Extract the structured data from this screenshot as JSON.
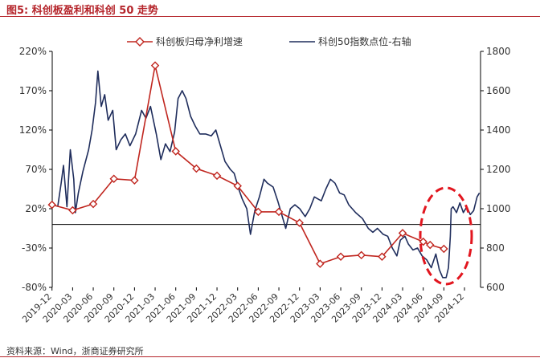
{
  "header": {
    "title": "图5:  科创板盈利和科创 50 走势"
  },
  "footer": {
    "source": "资料来源：Wind，浙商证券研究所"
  },
  "chart_data": {
    "type": "line",
    "title": "",
    "x_ticks": [
      "2019-12",
      "2020-03",
      "2020-06",
      "2020-09",
      "2020-12",
      "2021-03",
      "2021-06",
      "2021-09",
      "2021-12",
      "2022-03",
      "2022-06",
      "2022-09",
      "2022-12",
      "2023-03",
      "2023-06",
      "2023-09",
      "2023-12",
      "2024-03",
      "2024-06",
      "2024-09",
      "2024-12"
    ],
    "y_left": {
      "min": -80,
      "max": 220,
      "ticks": [
        "220%",
        "170%",
        "120%",
        "70%",
        "20%",
        "-30%",
        "-80%"
      ],
      "tick_values": [
        220,
        170,
        120,
        70,
        20,
        -30,
        -80
      ]
    },
    "y_right": {
      "min": 600,
      "max": 1800,
      "ticks": [
        "1800",
        "1600",
        "1400",
        "1200",
        "1000",
        "800",
        "600"
      ],
      "tick_values": [
        1800,
        1600,
        1400,
        1200,
        1000,
        800,
        600
      ]
    },
    "zero_line": 0,
    "legend_position": "top",
    "series": [
      {
        "name": "科创板归母净利增速",
        "axis": "left",
        "color": "#c0261f",
        "marker": "diamond",
        "points": [
          [
            "2019-12",
            25
          ],
          [
            "2020-03",
            18
          ],
          [
            "2020-06",
            26
          ],
          [
            "2020-09",
            58
          ],
          [
            "2020-12",
            56
          ],
          [
            "2021-03",
            202
          ],
          [
            "2021-06",
            93
          ],
          [
            "2021-09",
            71
          ],
          [
            "2021-12",
            62
          ],
          [
            "2022-03",
            49
          ],
          [
            "2022-06",
            16
          ],
          [
            "2022-09",
            16
          ],
          [
            "2022-12",
            2
          ],
          [
            "2023-03",
            -50
          ],
          [
            "2023-06",
            -41
          ],
          [
            "2023-09",
            -39
          ],
          [
            "2023-12",
            -41
          ],
          [
            "2024-03",
            -11
          ],
          [
            "2024-06",
            -22
          ],
          [
            "2024-07",
            -26
          ],
          [
            "2024-09",
            -31
          ]
        ]
      },
      {
        "name": "科创50指数点位-右轴",
        "axis": "right",
        "color": "#1f2d5c",
        "points": [
          [
            "2019-12-25",
            1010
          ],
          [
            "2020-01-10",
            1130
          ],
          [
            "2020-01-20",
            1220
          ],
          [
            "2020-02-05",
            1010
          ],
          [
            "2020-02-20",
            1300
          ],
          [
            "2020-03-05",
            1150
          ],
          [
            "2020-03-12",
            980
          ],
          [
            "2020-03-25",
            1080
          ],
          [
            "2020-04-15",
            1190
          ],
          [
            "2020-05-10",
            1300
          ],
          [
            "2020-05-25",
            1400
          ],
          [
            "2020-06-10",
            1540
          ],
          [
            "2020-06-20",
            1700
          ],
          [
            "2020-07-05",
            1520
          ],
          [
            "2020-07-20",
            1580
          ],
          [
            "2020-08-05",
            1450
          ],
          [
            "2020-08-25",
            1500
          ],
          [
            "2020-09-10",
            1300
          ],
          [
            "2020-09-30",
            1350
          ],
          [
            "2020-10-20",
            1380
          ],
          [
            "2020-11-10",
            1320
          ],
          [
            "2020-12-05",
            1380
          ],
          [
            "2020-12-31",
            1500
          ],
          [
            "2021-01-20",
            1460
          ],
          [
            "2021-02-10",
            1520
          ],
          [
            "2021-03-05",
            1380
          ],
          [
            "2021-03-25",
            1250
          ],
          [
            "2021-04-15",
            1330
          ],
          [
            "2021-05-05",
            1290
          ],
          [
            "2021-05-25",
            1390
          ],
          [
            "2021-06-10",
            1560
          ],
          [
            "2021-06-28",
            1600
          ],
          [
            "2021-07-15",
            1560
          ],
          [
            "2021-08-05",
            1470
          ],
          [
            "2021-08-25",
            1420
          ],
          [
            "2021-09-15",
            1380
          ],
          [
            "2021-10-10",
            1380
          ],
          [
            "2021-11-05",
            1370
          ],
          [
            "2021-11-25",
            1400
          ],
          [
            "2021-12-15",
            1320
          ],
          [
            "2022-01-05",
            1240
          ],
          [
            "2022-01-28",
            1200
          ],
          [
            "2022-02-15",
            1180
          ],
          [
            "2022-03-05",
            1100
          ],
          [
            "2022-03-20",
            1050
          ],
          [
            "2022-04-10",
            1000
          ],
          [
            "2022-04-26",
            870
          ],
          [
            "2022-05-15",
            990
          ],
          [
            "2022-06-05",
            1060
          ],
          [
            "2022-06-25",
            1150
          ],
          [
            "2022-07-10",
            1130
          ],
          [
            "2022-08-05",
            1110
          ],
          [
            "2022-08-25",
            1040
          ],
          [
            "2022-09-15",
            960
          ],
          [
            "2022-09-30",
            900
          ],
          [
            "2022-10-20",
            1000
          ],
          [
            "2022-11-10",
            1020
          ],
          [
            "2022-12-01",
            1000
          ],
          [
            "2022-12-25",
            960
          ],
          [
            "2023-01-15",
            1000
          ],
          [
            "2023-02-05",
            1060
          ],
          [
            "2023-03-05",
            1040
          ],
          [
            "2023-03-25",
            1100
          ],
          [
            "2023-04-15",
            1150
          ],
          [
            "2023-05-05",
            1130
          ],
          [
            "2023-05-25",
            1080
          ],
          [
            "2023-06-15",
            1070
          ],
          [
            "2023-07-05",
            1020
          ],
          [
            "2023-08-05",
            980
          ],
          [
            "2023-09-05",
            950
          ],
          [
            "2023-09-30",
            900
          ],
          [
            "2023-10-20",
            880
          ],
          [
            "2023-11-10",
            900
          ],
          [
            "2023-12-05",
            870
          ],
          [
            "2023-12-25",
            860
          ],
          [
            "2024-01-15",
            800
          ],
          [
            "2024-02-05",
            760
          ],
          [
            "2024-02-20",
            840
          ],
          [
            "2024-03-10",
            860
          ],
          [
            "2024-03-25",
            820
          ],
          [
            "2024-04-15",
            790
          ],
          [
            "2024-05-05",
            800
          ],
          [
            "2024-05-25",
            760
          ],
          [
            "2024-06-15",
            740
          ],
          [
            "2024-07-05",
            700
          ],
          [
            "2024-07-25",
            770
          ],
          [
            "2024-08-10",
            690
          ],
          [
            "2024-08-25",
            650
          ],
          [
            "2024-09-10",
            650
          ],
          [
            "2024-09-20",
            700
          ],
          [
            "2024-09-28",
            860
          ],
          [
            "2024-10-02",
            1000
          ],
          [
            "2024-10-10",
            1010
          ],
          [
            "2024-10-25",
            980
          ],
          [
            "2024-11-10",
            1030
          ],
          [
            "2024-11-25",
            980
          ],
          [
            "2024-12-10",
            1010
          ],
          [
            "2024-12-25",
            970
          ],
          [
            "2025-01-10",
            990
          ],
          [
            "2025-01-25",
            1060
          ],
          [
            "2025-02-05",
            1080
          ]
        ]
      }
    ]
  }
}
